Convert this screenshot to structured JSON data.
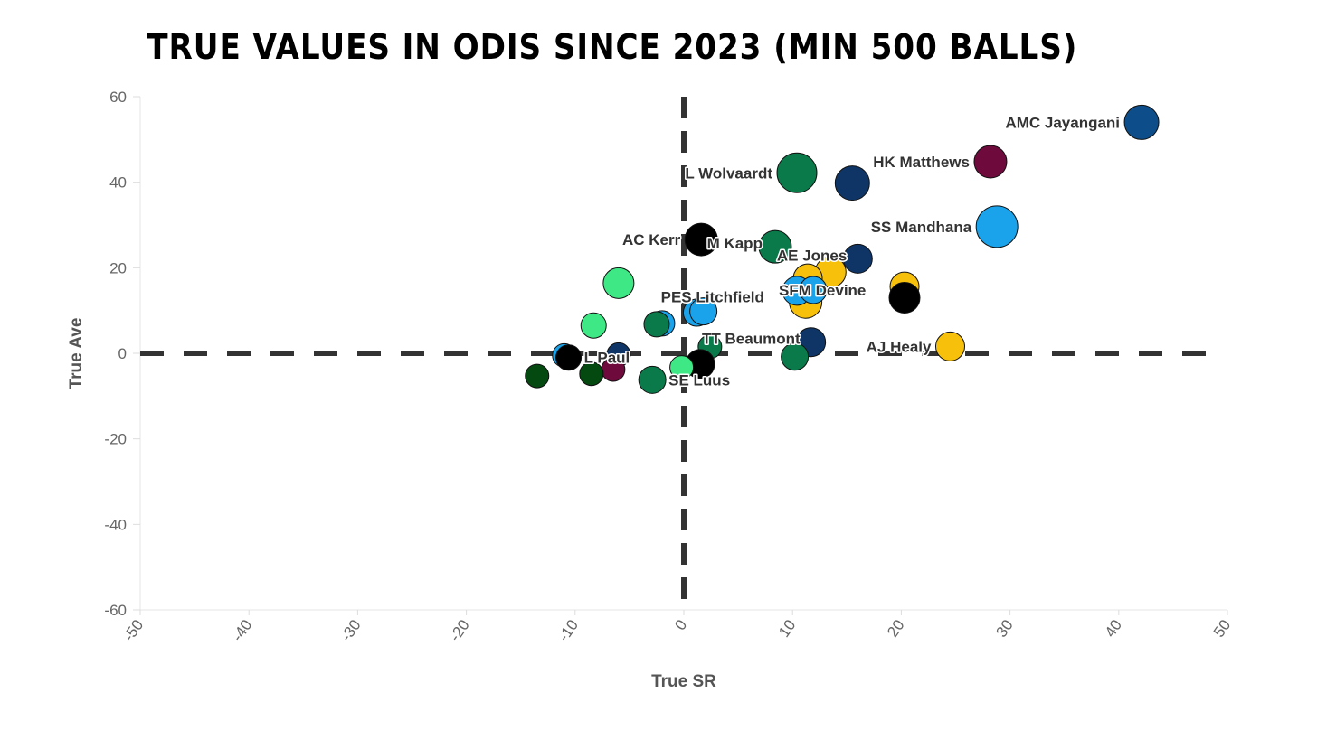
{
  "chart_data": {
    "type": "scatter",
    "title": "TRUE VALUES IN ODIS SINCE 2023 (MIN 500 BALLS)",
    "xlabel": "True SR",
    "ylabel": "True Ave",
    "xlim": [
      -50,
      50
    ],
    "ylim": [
      -60,
      60
    ],
    "xticks": [
      -50,
      -40,
      -30,
      -20,
      -10,
      0,
      10,
      20,
      30,
      40,
      50
    ],
    "yticks": [
      60,
      40,
      20,
      0,
      -20,
      -40,
      -60
    ],
    "reference_lines": {
      "x": 0,
      "y": 0,
      "style": "dashed"
    },
    "points": [
      {
        "x": 42.1,
        "y": 54.0,
        "size": 19,
        "color": "#0d4d8a",
        "label": "AMC Jayangani",
        "label_pos": "left"
      },
      {
        "x": 28.2,
        "y": 44.8,
        "size": 18,
        "color": "#6e0a3c",
        "label": "HK Matthews",
        "label_pos": "left"
      },
      {
        "x": 15.5,
        "y": 39.8,
        "size": 19,
        "color": "#0e3566",
        "label": "",
        "label_pos": ""
      },
      {
        "x": 10.4,
        "y": 42.2,
        "size": 22,
        "color": "#0a7a4a",
        "label": "L Wolvaardt",
        "label_pos": "left"
      },
      {
        "x": 28.8,
        "y": 29.6,
        "size": 23,
        "color": "#1aa3ea",
        "label": "SS Mandhana",
        "label_pos": "left"
      },
      {
        "x": 1.6,
        "y": 26.6,
        "size": 18,
        "color": "#000000",
        "label": "AC Kerr",
        "label_pos": "left"
      },
      {
        "x": 8.4,
        "y": 24.9,
        "size": 18,
        "color": "#0a7a4a",
        "label": "M Kapp",
        "label_pos": "leftfar"
      },
      {
        "x": 16.0,
        "y": 22.1,
        "size": 16,
        "color": "#0e3566",
        "label": "AE Jones",
        "label_pos": "leftfar"
      },
      {
        "x": 13.5,
        "y": 19.0,
        "size": 17,
        "color": "#f7c00a",
        "label": "",
        "label_pos": ""
      },
      {
        "x": 11.4,
        "y": 17.5,
        "size": 16,
        "color": "#f7c00a",
        "label": "",
        "label_pos": ""
      },
      {
        "x": 20.3,
        "y": 15.6,
        "size": 16,
        "color": "#f7c00a",
        "label": "",
        "label_pos": ""
      },
      {
        "x": 20.3,
        "y": 13.0,
        "size": 17,
        "color": "#000000",
        "label": "",
        "label_pos": ""
      },
      {
        "x": 11.2,
        "y": 12.0,
        "size": 18,
        "color": "#f7c00a",
        "label": "",
        "label_pos": ""
      },
      {
        "x": 10.4,
        "y": 14.6,
        "size": 16,
        "color": "#1aa3ea",
        "label": "",
        "label_pos": ""
      },
      {
        "x": 11.9,
        "y": 14.8,
        "size": 15,
        "color": "#1aa3ea",
        "label": "SFM Devine",
        "label_pos": "rightcenter"
      },
      {
        "x": -6.0,
        "y": 16.4,
        "size": 17,
        "color": "#3de885",
        "label": "",
        "label_pos": ""
      },
      {
        "x": 1.2,
        "y": 9.5,
        "size": 15,
        "color": "#1aa3ea",
        "label": "",
        "label_pos": ""
      },
      {
        "x": 1.8,
        "y": 9.8,
        "size": 15,
        "color": "#1aa3ea",
        "label": "PES Litchfield",
        "label_pos": "rightup"
      },
      {
        "x": -2.0,
        "y": 7.0,
        "size": 14,
        "color": "#1aa3ea",
        "label": "",
        "label_pos": ""
      },
      {
        "x": -2.5,
        "y": 6.8,
        "size": 14,
        "color": "#0a7a4a",
        "label": "",
        "label_pos": ""
      },
      {
        "x": -8.3,
        "y": 6.5,
        "size": 14,
        "color": "#3de885",
        "label": "",
        "label_pos": ""
      },
      {
        "x": 11.7,
        "y": 2.6,
        "size": 16,
        "color": "#0e3566",
        "label": "TT Beaumont",
        "label_pos": "leftfar"
      },
      {
        "x": 24.5,
        "y": 1.6,
        "size": 16,
        "color": "#f7c00a",
        "label": "AJ Healy",
        "label_pos": "left"
      },
      {
        "x": 2.4,
        "y": 1.5,
        "size": 13,
        "color": "#0a7a4a",
        "label": "",
        "label_pos": ""
      },
      {
        "x": 1.5,
        "y": -2.5,
        "size": 16,
        "color": "#000000",
        "label": "",
        "label_pos": ""
      },
      {
        "x": 10.2,
        "y": -0.8,
        "size": 15,
        "color": "#0a7a4a",
        "label": "",
        "label_pos": ""
      },
      {
        "x": -6.0,
        "y": -0.3,
        "size": 13,
        "color": "#0e3566",
        "label": "",
        "label_pos": ""
      },
      {
        "x": -11.0,
        "y": -0.5,
        "size": 13,
        "color": "#1aa3ea",
        "label": "",
        "label_pos": ""
      },
      {
        "x": -10.6,
        "y": -1.0,
        "size": 14,
        "color": "#000000",
        "label": "L Paul",
        "label_pos": "right"
      },
      {
        "x": -6.5,
        "y": -3.8,
        "size": 13,
        "color": "#6e0a3c",
        "label": "",
        "label_pos": ""
      },
      {
        "x": -8.5,
        "y": -4.8,
        "size": 13,
        "color": "#044a10",
        "label": "",
        "label_pos": ""
      },
      {
        "x": -13.5,
        "y": -5.3,
        "size": 13,
        "color": "#044a10",
        "label": "",
        "label_pos": ""
      },
      {
        "x": -0.2,
        "y": -3.3,
        "size": 13,
        "color": "#3de885",
        "label": "",
        "label_pos": ""
      },
      {
        "x": -2.9,
        "y": -6.2,
        "size": 15,
        "color": "#0a7a4a",
        "label": "SE Luus",
        "label_pos": "right"
      }
    ]
  }
}
